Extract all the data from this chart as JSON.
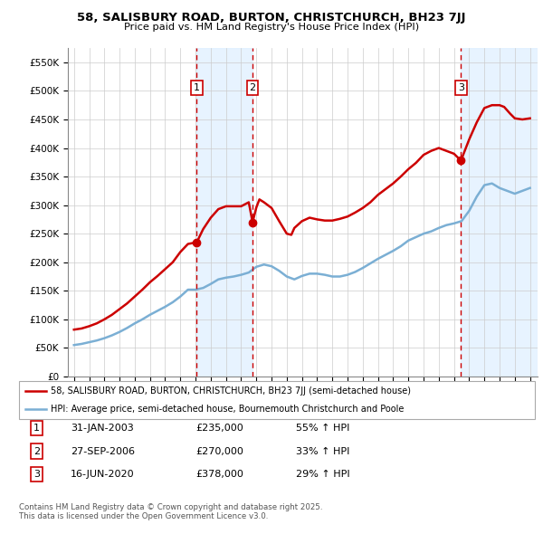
{
  "title": "58, SALISBURY ROAD, BURTON, CHRISTCHURCH, BH23 7JJ",
  "subtitle": "Price paid vs. HM Land Registry's House Price Index (HPI)",
  "legend_line1": "58, SALISBURY ROAD, BURTON, CHRISTCHURCH, BH23 7JJ (semi-detached house)",
  "legend_line2": "HPI: Average price, semi-detached house, Bournemouth Christchurch and Poole",
  "footer1": "Contains HM Land Registry data © Crown copyright and database right 2025.",
  "footer2": "This data is licensed under the Open Government Licence v3.0.",
  "sale_markers": [
    {
      "num": 1,
      "year": 2003.08,
      "price": 235000,
      "date": "31-JAN-2003",
      "pct": "55%",
      "label": "£235,000"
    },
    {
      "num": 2,
      "year": 2006.75,
      "price": 270000,
      "date": "27-SEP-2006",
      "pct": "33%",
      "label": "£270,000"
    },
    {
      "num": 3,
      "year": 2020.46,
      "price": 378000,
      "date": "16-JUN-2020",
      "pct": "29%",
      "label": "£378,000"
    }
  ],
  "hpi_color": "#7bafd4",
  "price_color": "#cc0000",
  "marker_box_color": "#cc0000",
  "vline_color": "#cc0000",
  "plot_bg": "#ffffff",
  "shade_color": "#ddeeff",
  "ylim": [
    0,
    575000
  ],
  "yticks": [
    0,
    50000,
    100000,
    150000,
    200000,
    250000,
    300000,
    350000,
    400000,
    450000,
    500000,
    550000
  ],
  "xlim_start": 1994.6,
  "xlim_end": 2025.5,
  "hpi_years": [
    1995.0,
    1995.5,
    1996.0,
    1996.5,
    1997.0,
    1997.5,
    1998.0,
    1998.5,
    1999.0,
    1999.5,
    2000.0,
    2000.5,
    2001.0,
    2001.5,
    2002.0,
    2002.5,
    2003.0,
    2003.5,
    2004.0,
    2004.5,
    2005.0,
    2005.5,
    2006.0,
    2006.5,
    2007.0,
    2007.5,
    2008.0,
    2008.5,
    2009.0,
    2009.5,
    2010.0,
    2010.5,
    2011.0,
    2011.5,
    2012.0,
    2012.5,
    2013.0,
    2013.5,
    2014.0,
    2014.5,
    2015.0,
    2015.5,
    2016.0,
    2016.5,
    2017.0,
    2017.5,
    2018.0,
    2018.5,
    2019.0,
    2019.5,
    2020.0,
    2020.5,
    2021.0,
    2021.5,
    2022.0,
    2022.5,
    2023.0,
    2023.5,
    2024.0,
    2024.5,
    2025.0
  ],
  "hpi_values": [
    55000,
    57000,
    60000,
    63000,
    67000,
    72000,
    78000,
    85000,
    93000,
    100000,
    108000,
    115000,
    122000,
    130000,
    140000,
    152000,
    152000,
    155000,
    162000,
    170000,
    173000,
    175000,
    178000,
    182000,
    192000,
    196000,
    193000,
    185000,
    175000,
    170000,
    176000,
    180000,
    180000,
    178000,
    175000,
    175000,
    178000,
    183000,
    190000,
    198000,
    206000,
    213000,
    220000,
    228000,
    238000,
    244000,
    250000,
    254000,
    260000,
    265000,
    268000,
    272000,
    290000,
    315000,
    335000,
    338000,
    330000,
    325000,
    320000,
    325000,
    330000
  ],
  "price_years": [
    1995.0,
    1995.5,
    1996.0,
    1996.5,
    1997.0,
    1997.5,
    1998.0,
    1998.5,
    1999.0,
    1999.5,
    2000.0,
    2000.5,
    2001.0,
    2001.5,
    2002.0,
    2002.5,
    2003.08,
    2003.5,
    2004.0,
    2004.5,
    2005.0,
    2005.5,
    2006.0,
    2006.5,
    2006.75,
    2007.0,
    2007.2,
    2007.5,
    2008.0,
    2008.5,
    2009.0,
    2009.3,
    2009.5,
    2010.0,
    2010.5,
    2011.0,
    2011.5,
    2012.0,
    2012.5,
    2013.0,
    2013.5,
    2014.0,
    2014.5,
    2015.0,
    2015.5,
    2016.0,
    2016.5,
    2017.0,
    2017.5,
    2018.0,
    2018.5,
    2019.0,
    2019.5,
    2020.0,
    2020.46,
    2021.0,
    2021.5,
    2022.0,
    2022.5,
    2023.0,
    2023.3,
    2023.7,
    2024.0,
    2024.5,
    2025.0
  ],
  "price_values": [
    82000,
    84000,
    88000,
    93000,
    100000,
    108000,
    118000,
    128000,
    140000,
    152000,
    165000,
    176000,
    188000,
    200000,
    218000,
    232000,
    235000,
    258000,
    278000,
    293000,
    298000,
    298000,
    298000,
    305000,
    270000,
    296000,
    310000,
    305000,
    295000,
    272000,
    250000,
    248000,
    260000,
    272000,
    278000,
    275000,
    273000,
    273000,
    276000,
    280000,
    287000,
    295000,
    305000,
    318000,
    328000,
    338000,
    350000,
    363000,
    374000,
    388000,
    395000,
    400000,
    395000,
    390000,
    378000,
    415000,
    445000,
    470000,
    475000,
    475000,
    472000,
    460000,
    452000,
    450000,
    452000
  ]
}
